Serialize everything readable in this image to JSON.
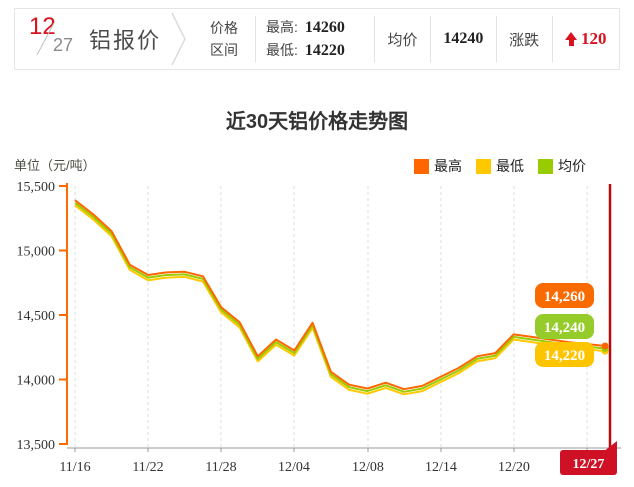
{
  "header": {
    "date_month": "12",
    "date_day": "27",
    "product": "铝报价",
    "range_label_line1": "价格",
    "range_label_line2": "区间",
    "high_label": "最高:",
    "high_value": "14260",
    "low_label": "最低:",
    "low_value": "14220",
    "avg_label": "均价",
    "avg_value": "14240",
    "change_label": "涨跌",
    "change_value": "120",
    "change_direction": "up",
    "accent_red": "#d9121f"
  },
  "chart": {
    "title": "近30天铝价格走势图",
    "unit_label": "单位（元/吨）",
    "legend": [
      {
        "label": "最高",
        "color": "#ff6600"
      },
      {
        "label": "最低",
        "color": "#ffc800"
      },
      {
        "label": "均价",
        "color": "#99cc00"
      }
    ],
    "today_marker_color": "#b70b0b",
    "today_badge_color": "#cf1126"
  },
  "chart_data": {
    "type": "line",
    "title": "近30天铝价格走势图",
    "ylabel": "单位（元/吨）",
    "ylim": [
      13500,
      15500
    ],
    "ytick_values": [
      15500,
      15000,
      14500,
      14000,
      13500
    ],
    "ytick_labels": [
      "15,500",
      "15,000",
      "14,500",
      "14,000",
      "13,500"
    ],
    "xtick_labels": [
      "11/16",
      "11/22",
      "11/28",
      "12/04",
      "12/08",
      "12/14",
      "12/20",
      "12/27"
    ],
    "grid": "vertical-dashed",
    "legend_position": "top-right",
    "series": [
      {
        "name": "最低",
        "color": "#ffc800",
        "values": [
          15350,
          15240,
          15110,
          14850,
          14770,
          14790,
          14795,
          14760,
          14520,
          14405,
          14140,
          14270,
          14185,
          14400,
          14020,
          13920,
          13890,
          13935,
          13885,
          13910,
          13980,
          14050,
          14140,
          14165,
          14310,
          14290,
          14270,
          14250,
          14235,
          14220
        ]
      },
      {
        "name": "均价",
        "color": "#99cc00",
        "values": [
          15370,
          15260,
          15130,
          14870,
          14790,
          14810,
          14815,
          14780,
          14540,
          14425,
          14160,
          14290,
          14205,
          14420,
          14040,
          13940,
          13910,
          13955,
          13905,
          13930,
          14000,
          14070,
          14160,
          14185,
          14330,
          14310,
          14290,
          14270,
          14255,
          14240
        ]
      },
      {
        "name": "最高",
        "color": "#ff6600",
        "values": [
          15390,
          15280,
          15150,
          14890,
          14810,
          14830,
          14835,
          14800,
          14560,
          14445,
          14180,
          14310,
          14225,
          14440,
          14060,
          13960,
          13930,
          13975,
          13925,
          13950,
          14020,
          14090,
          14180,
          14205,
          14350,
          14330,
          14310,
          14290,
          14275,
          14260
        ]
      }
    ],
    "end_labels": [
      {
        "text": "14,260",
        "color": "#f96a00"
      },
      {
        "text": "14,240",
        "color": "#95cc2a"
      },
      {
        "text": "14,220",
        "color": "#fdc400"
      }
    ],
    "today_label": "12/27"
  }
}
